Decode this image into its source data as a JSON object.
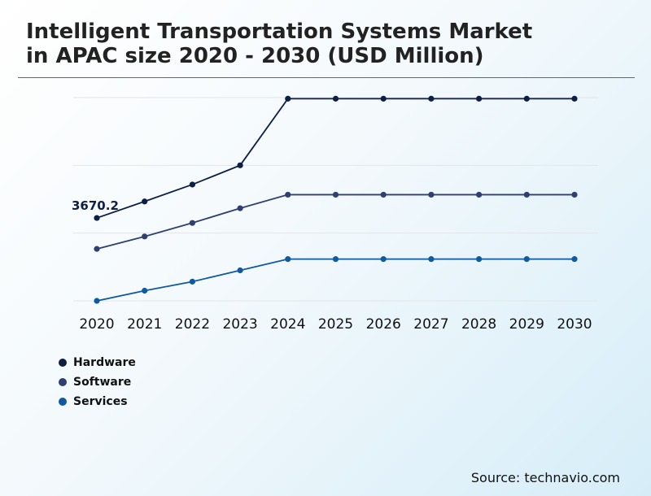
{
  "chart_data": {
    "type": "line",
    "title": "Intelligent Transportation Systems Market in APAC size 2020 - 2030 (USD Million)",
    "xlabel": "",
    "ylabel": "",
    "categories": [
      "2020",
      "2021",
      "2022",
      "2023",
      "2024",
      "2025",
      "2026",
      "2027",
      "2028",
      "2029",
      "2030"
    ],
    "ylim": [
      0,
      9000
    ],
    "grid": true,
    "legend_position": "bottom-left",
    "series": [
      {
        "name": "Hardware",
        "color": "#0d1f45",
        "values": [
          3670.2,
          4400,
          5150,
          6000,
          8950,
          8950,
          8950,
          8950,
          8950,
          8950,
          8950
        ]
      },
      {
        "name": "Software",
        "color": "#2e3f70",
        "values": [
          2300,
          2850,
          3450,
          4100,
          4700,
          4700,
          4700,
          4700,
          4700,
          4700,
          4700
        ]
      },
      {
        "name": "Services",
        "color": "#0f5aa0",
        "values": [
          0,
          450,
          850,
          1350,
          1850,
          1850,
          1850,
          1850,
          1850,
          1850,
          1850
        ]
      }
    ],
    "annotations": [
      {
        "series": "Hardware",
        "x": "2020",
        "text": "3670.2"
      }
    ]
  },
  "source": "Source: technavio.com"
}
